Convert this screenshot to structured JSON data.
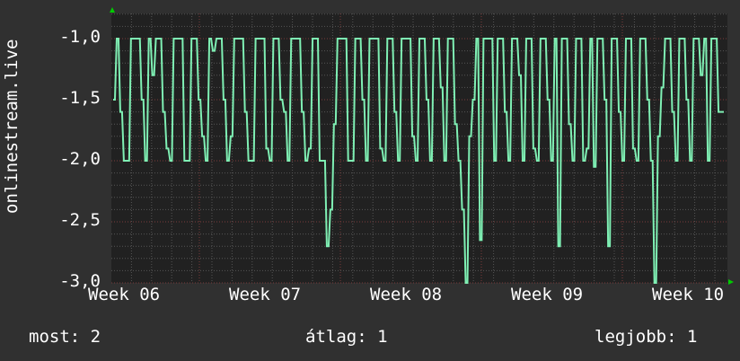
{
  "chart_data": {
    "type": "line",
    "ylabel": "onlinestream.live",
    "ylim": [
      -3.0,
      -0.8
    ],
    "yticks": [
      "-1,0",
      "-1,5",
      "-2,0",
      "-2,5",
      "-3,0"
    ],
    "ytick_values": [
      -1.0,
      -1.5,
      -2.0,
      -2.5,
      -3.0
    ],
    "xticks": [
      "Week 06",
      "Week 07",
      "Week 08",
      "Week 09",
      "Week 10"
    ],
    "grid": true,
    "line_color": "#7ff0b4",
    "values": [
      -1.5,
      -1,
      -1.6,
      -2,
      -2,
      -1,
      -1,
      -1,
      -1.5,
      -2,
      -1,
      -1.3,
      -1,
      -1,
      -1.6,
      -1.9,
      -2,
      -1,
      -1,
      -1,
      -2,
      -2,
      -1,
      -1,
      -1.5,
      -1.8,
      -2,
      -1,
      -1.1,
      -1,
      -1,
      -1.5,
      -2,
      -1.8,
      -1,
      -1,
      -1,
      -1.6,
      -2,
      -2,
      -1,
      -1,
      -1,
      -1.9,
      -2,
      -1,
      -1,
      -1.5,
      -1.6,
      -2,
      -1,
      -1,
      -1,
      -1.6,
      -2,
      -1.9,
      -1,
      -1,
      -2,
      -2,
      -2.7,
      -2.4,
      -1.7,
      -1,
      -1,
      -1,
      -2,
      -2,
      -1,
      -1,
      -1.5,
      -2,
      -1,
      -1,
      -1,
      -1.9,
      -2,
      -1,
      -1,
      -1.6,
      -2,
      -1,
      -1,
      -1,
      -1.8,
      -2,
      -1,
      -1,
      -1.5,
      -2,
      -1,
      -1,
      -1.4,
      -2,
      -1,
      -1,
      -1.7,
      -2,
      -2.4,
      -3.0,
      -1.8,
      -1.5,
      -1,
      -2.65,
      -1,
      -1,
      -1,
      -2,
      -1,
      -1,
      -1.6,
      -2,
      -1,
      -1,
      -1.3,
      -2,
      -1,
      -1,
      -1.9,
      -2,
      -1,
      -1,
      -1.5,
      -2,
      -1,
      -2.7,
      -1,
      -1,
      -1.7,
      -2,
      -1,
      -1,
      -2,
      -1.9,
      -1,
      -2.05,
      -1,
      -1,
      -1.5,
      -2.7,
      -1,
      -1,
      -1.6,
      -2,
      -1,
      -1,
      -1.9,
      -2,
      -1,
      -1,
      -1.5,
      -2,
      -3.0,
      -1.8,
      -1.4,
      -1,
      -1,
      -1.6,
      -2,
      -1,
      -1,
      -1.5,
      -2,
      -1,
      -1,
      -1.3,
      -1,
      -2,
      -1,
      -1,
      -1.6,
      -1.6
    ],
    "legend": {
      "current": {
        "label": "most:",
        "value": "2"
      },
      "average": {
        "label": "átlag:",
        "value": "1"
      },
      "max": {
        "label": "legjobb:",
        "value": "1"
      }
    }
  }
}
